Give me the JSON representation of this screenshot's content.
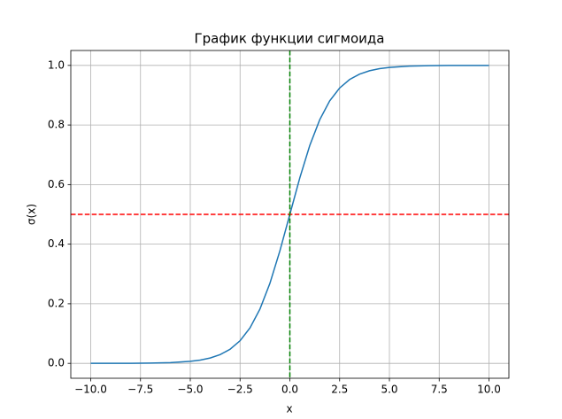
{
  "chart_data": {
    "type": "line",
    "title": "График функции сигмоида",
    "x_label": "x",
    "y_label": "σ(x)",
    "x": [
      -10,
      -9,
      -8,
      -7,
      -6,
      -5,
      -4.5,
      -4,
      -3.5,
      -3,
      -2.5,
      -2,
      -1.5,
      -1,
      -0.5,
      0,
      0.5,
      1,
      1.5,
      2,
      2.5,
      3,
      3.5,
      4,
      4.5,
      5,
      6,
      7,
      8,
      9,
      10
    ],
    "series": [
      {
        "color": "#1f77b4",
        "values": [
          0.0,
          0.0001,
          0.0003,
          0.0009,
          0.0025,
          0.0067,
          0.011,
          0.018,
          0.0293,
          0.0474,
          0.0759,
          0.1192,
          0.1824,
          0.2689,
          0.3775,
          0.5,
          0.6225,
          0.7311,
          0.8176,
          0.8808,
          0.9241,
          0.9526,
          0.9707,
          0.982,
          0.989,
          0.9933,
          0.9975,
          0.9991,
          0.9997,
          0.9999,
          1.0
        ]
      }
    ],
    "hlines": [
      {
        "value": 0.5,
        "color": "#ff0000"
      }
    ],
    "vlines": [
      {
        "value": 0,
        "color": "#008000"
      }
    ],
    "xlim": [
      -11,
      11
    ],
    "xticks": [
      {
        "value": -10,
        "label": "−10.0"
      },
      {
        "value": -7.5,
        "label": "−7.5"
      },
      {
        "value": -5,
        "label": "−5.0"
      },
      {
        "value": -2.5,
        "label": "−2.5"
      },
      {
        "value": 0,
        "label": "0.0"
      },
      2.5,
      {
        "value": 5,
        "label": "5.0"
      },
      7.5,
      {
        "value": 10,
        "label": "10.0"
      }
    ],
    "ylim": [
      -0.05,
      1.05
    ],
    "yticks": [
      {
        "value": 0,
        "label": "0.0"
      },
      0.2,
      0.4,
      0.6,
      0.8,
      {
        "value": 1,
        "label": "1.0"
      }
    ],
    "grid": true
  }
}
